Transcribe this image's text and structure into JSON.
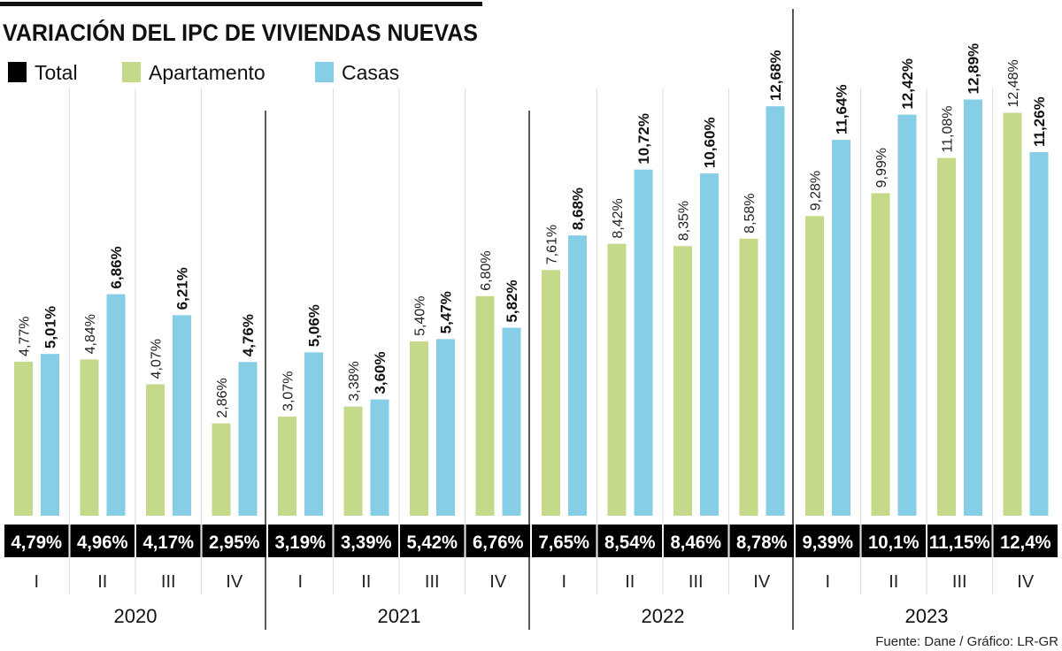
{
  "chart_data": {
    "type": "bar",
    "title": "VARIACIÓN DEL IPC DE VIVIENDAS NUEVAS",
    "source": "Fuente: Dane / Gráfico: LR-GR",
    "legend": [
      {
        "name": "Total",
        "color": "#000000"
      },
      {
        "name": "Apartamento",
        "color": "#c5d98a"
      },
      {
        "name": "Casas",
        "color": "#86cde6"
      }
    ],
    "legend_position": "top-left",
    "years": [
      "2020",
      "2021",
      "2022",
      "2023"
    ],
    "quarters": [
      "I",
      "II",
      "III",
      "IV"
    ],
    "categories": [
      "2020-I",
      "2020-II",
      "2020-III",
      "2020-IV",
      "2021-I",
      "2021-II",
      "2021-III",
      "2021-IV",
      "2022-I",
      "2022-II",
      "2022-III",
      "2022-IV",
      "2023-I",
      "2023-II",
      "2023-III",
      "2023-IV"
    ],
    "series": [
      {
        "name": "Total",
        "values": [
          4.79,
          4.96,
          4.17,
          2.95,
          3.19,
          3.39,
          5.42,
          6.76,
          7.65,
          8.54,
          8.46,
          8.78,
          9.39,
          10.1,
          11.15,
          12.4
        ],
        "labels": [
          "4,79%",
          "4,96%",
          "4,17%",
          "2,95%",
          "3,19%",
          "3,39%",
          "5,42%",
          "6,76%",
          "7,65%",
          "8,54%",
          "8,46%",
          "8,78%",
          "9,39%",
          "10,1%",
          "11,15%",
          "12,4%"
        ]
      },
      {
        "name": "Apartamento",
        "values": [
          4.77,
          4.84,
          4.07,
          2.86,
          3.07,
          3.38,
          5.4,
          6.8,
          7.61,
          8.42,
          8.35,
          8.58,
          9.28,
          9.99,
          11.08,
          12.48
        ],
        "labels": [
          "4,77%",
          "4,84%",
          "4,07%",
          "2,86%",
          "3,07%",
          "3,38%",
          "5,40%",
          "6,80%",
          "7,61%",
          "8,42%",
          "8,35%",
          "8,58%",
          "9,28%",
          "9,99%",
          "11,08%",
          "12,48%"
        ]
      },
      {
        "name": "Casas",
        "values": [
          5.01,
          6.86,
          6.21,
          4.76,
          5.06,
          3.6,
          5.47,
          5.82,
          8.68,
          10.72,
          10.6,
          12.68,
          11.64,
          12.42,
          12.89,
          11.26
        ],
        "labels": [
          "5,01%",
          "6,86%",
          "6,21%",
          "4,76%",
          "5,06%",
          "3,60%",
          "5,47%",
          "5,82%",
          "8,68%",
          "10,72%",
          "10,60%",
          "12,68%",
          "11,64%",
          "12,42%",
          "12,89%",
          "11,26%"
        ]
      }
    ],
    "ylabel": "",
    "xlabel": "",
    "ylim": [
      0,
      13
    ],
    "grid": false
  }
}
